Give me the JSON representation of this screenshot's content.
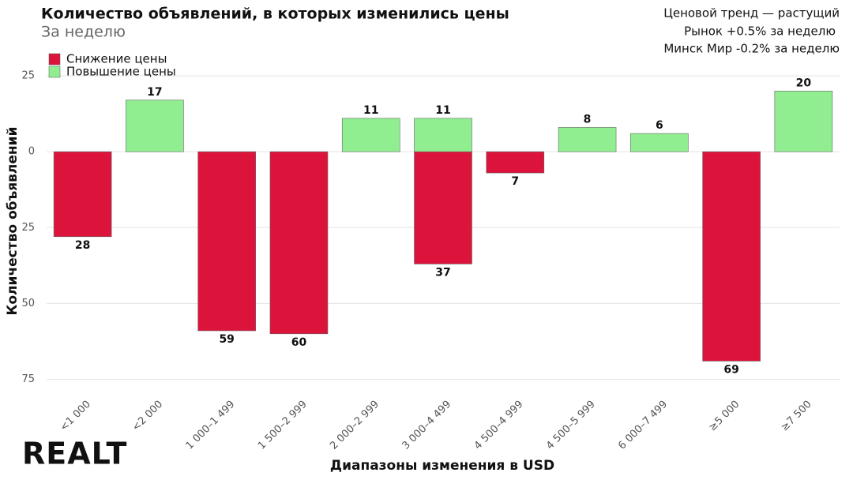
{
  "chart_data": {
    "type": "bar",
    "title": "Количество объявлений, в которых изменились цены",
    "subtitle": "За неделю",
    "annotations": [
      "Ценовой тренд — растущий",
      "Рынок +0.5% за неделю",
      "Минск Мир -0.2% за неделю"
    ],
    "logo": "REALT",
    "x_label": "Диапазоны изменения в USD",
    "y_label": "Количество объявлений",
    "categories": [
      "<1 000",
      "<2 000",
      "1 000–1 499",
      "1 500–2 999",
      "2 000–2 999",
      "3 000–4 499",
      "4 500–4 999",
      "4 500–5 999",
      "6 000–7 499",
      "≥5 000",
      "≥7 500"
    ],
    "series": [
      {
        "name": "Снижение цены",
        "color": "#dc143c",
        "values": [
          -28,
          null,
          -59,
          -60,
          null,
          -37,
          -7,
          null,
          null,
          -69,
          null
        ],
        "value_labels": [
          "28",
          null,
          "59",
          "60",
          null,
          "37",
          "7",
          null,
          null,
          "69",
          null
        ]
      },
      {
        "name": "Повышение цены",
        "color": "#90ee90",
        "values": [
          null,
          17,
          null,
          null,
          11,
          11,
          null,
          8,
          6,
          null,
          20
        ]
      }
    ],
    "ylim": [
      -78,
      31
    ],
    "yticks": [
      {
        "value": -75,
        "label": "75"
      },
      {
        "value": -50,
        "label": "50"
      },
      {
        "value": -25,
        "label": "25"
      },
      0,
      25
    ],
    "grid": true,
    "legend": "top-left"
  }
}
